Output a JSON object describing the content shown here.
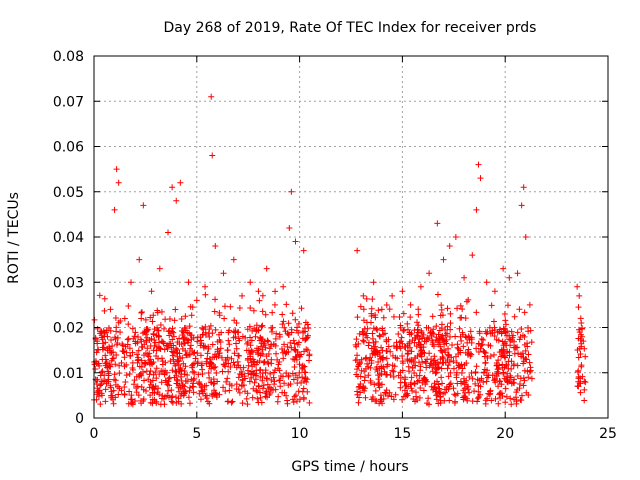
{
  "chart_data": {
    "type": "scatter",
    "title": "Day 268 of 2019, Rate Of TEC Index for receiver prds",
    "xlabel": "GPS time / hours",
    "ylabel": "ROTI / TECUs",
    "xlim": [
      0,
      25
    ],
    "ylim": [
      0,
      0.08
    ],
    "xticks": [
      "0",
      "5",
      "10",
      "15",
      "20",
      "25"
    ],
    "yticks": [
      "0",
      "0.01",
      "0.02",
      "0.03",
      "0.04",
      "0.05",
      "0.06",
      "0.07",
      "0.08"
    ],
    "grid": true,
    "marker": "plus",
    "color": "#ff0000",
    "data_ranges_hours": [
      [
        0.0,
        10.5
      ],
      [
        12.7,
        21.3
      ],
      [
        23.5,
        23.9
      ]
    ],
    "series": [
      {
        "points": [
          [
            0.2,
            0.012
          ],
          [
            0.5,
            0.018
          ],
          [
            0.8,
            0.024
          ],
          [
            1.0,
            0.046
          ],
          [
            1.1,
            0.055
          ],
          [
            1.2,
            0.052
          ],
          [
            1.5,
            0.022
          ],
          [
            1.8,
            0.03
          ],
          [
            2.2,
            0.035
          ],
          [
            2.4,
            0.047
          ],
          [
            2.8,
            0.028
          ],
          [
            3.2,
            0.033
          ],
          [
            3.6,
            0.041
          ],
          [
            3.8,
            0.051
          ],
          [
            4.0,
            0.048
          ],
          [
            4.2,
            0.052
          ],
          [
            4.6,
            0.03
          ],
          [
            5.0,
            0.026
          ],
          [
            5.4,
            0.029
          ],
          [
            5.7,
            0.071
          ],
          [
            5.75,
            0.058
          ],
          [
            5.9,
            0.038
          ],
          [
            6.3,
            0.032
          ],
          [
            6.8,
            0.035
          ],
          [
            7.2,
            0.027
          ],
          [
            7.6,
            0.03
          ],
          [
            8.0,
            0.028
          ],
          [
            8.4,
            0.033
          ],
          [
            8.8,
            0.025
          ],
          [
            9.2,
            0.029
          ],
          [
            9.5,
            0.042
          ],
          [
            9.6,
            0.05
          ],
          [
            9.8,
            0.039
          ],
          [
            10.2,
            0.037
          ],
          [
            10.4,
            0.015
          ],
          [
            12.8,
            0.037
          ],
          [
            13.1,
            0.027
          ],
          [
            13.6,
            0.03
          ],
          [
            14.0,
            0.024
          ],
          [
            14.5,
            0.027
          ],
          [
            15.0,
            0.028
          ],
          [
            15.4,
            0.025
          ],
          [
            15.9,
            0.029
          ],
          [
            16.3,
            0.032
          ],
          [
            16.7,
            0.043
          ],
          [
            17.0,
            0.035
          ],
          [
            17.3,
            0.038
          ],
          [
            17.6,
            0.04
          ],
          [
            18.0,
            0.031
          ],
          [
            18.4,
            0.036
          ],
          [
            18.6,
            0.046
          ],
          [
            18.7,
            0.056
          ],
          [
            18.8,
            0.053
          ],
          [
            19.1,
            0.03
          ],
          [
            19.5,
            0.028
          ],
          [
            19.9,
            0.033
          ],
          [
            20.2,
            0.031
          ],
          [
            20.6,
            0.032
          ],
          [
            20.8,
            0.047
          ],
          [
            20.9,
            0.051
          ],
          [
            21.0,
            0.04
          ],
          [
            21.2,
            0.025
          ],
          [
            23.5,
            0.029
          ],
          [
            23.6,
            0.027
          ],
          [
            23.7,
            0.021
          ],
          [
            23.8,
            0.017
          ]
        ]
      }
    ]
  }
}
